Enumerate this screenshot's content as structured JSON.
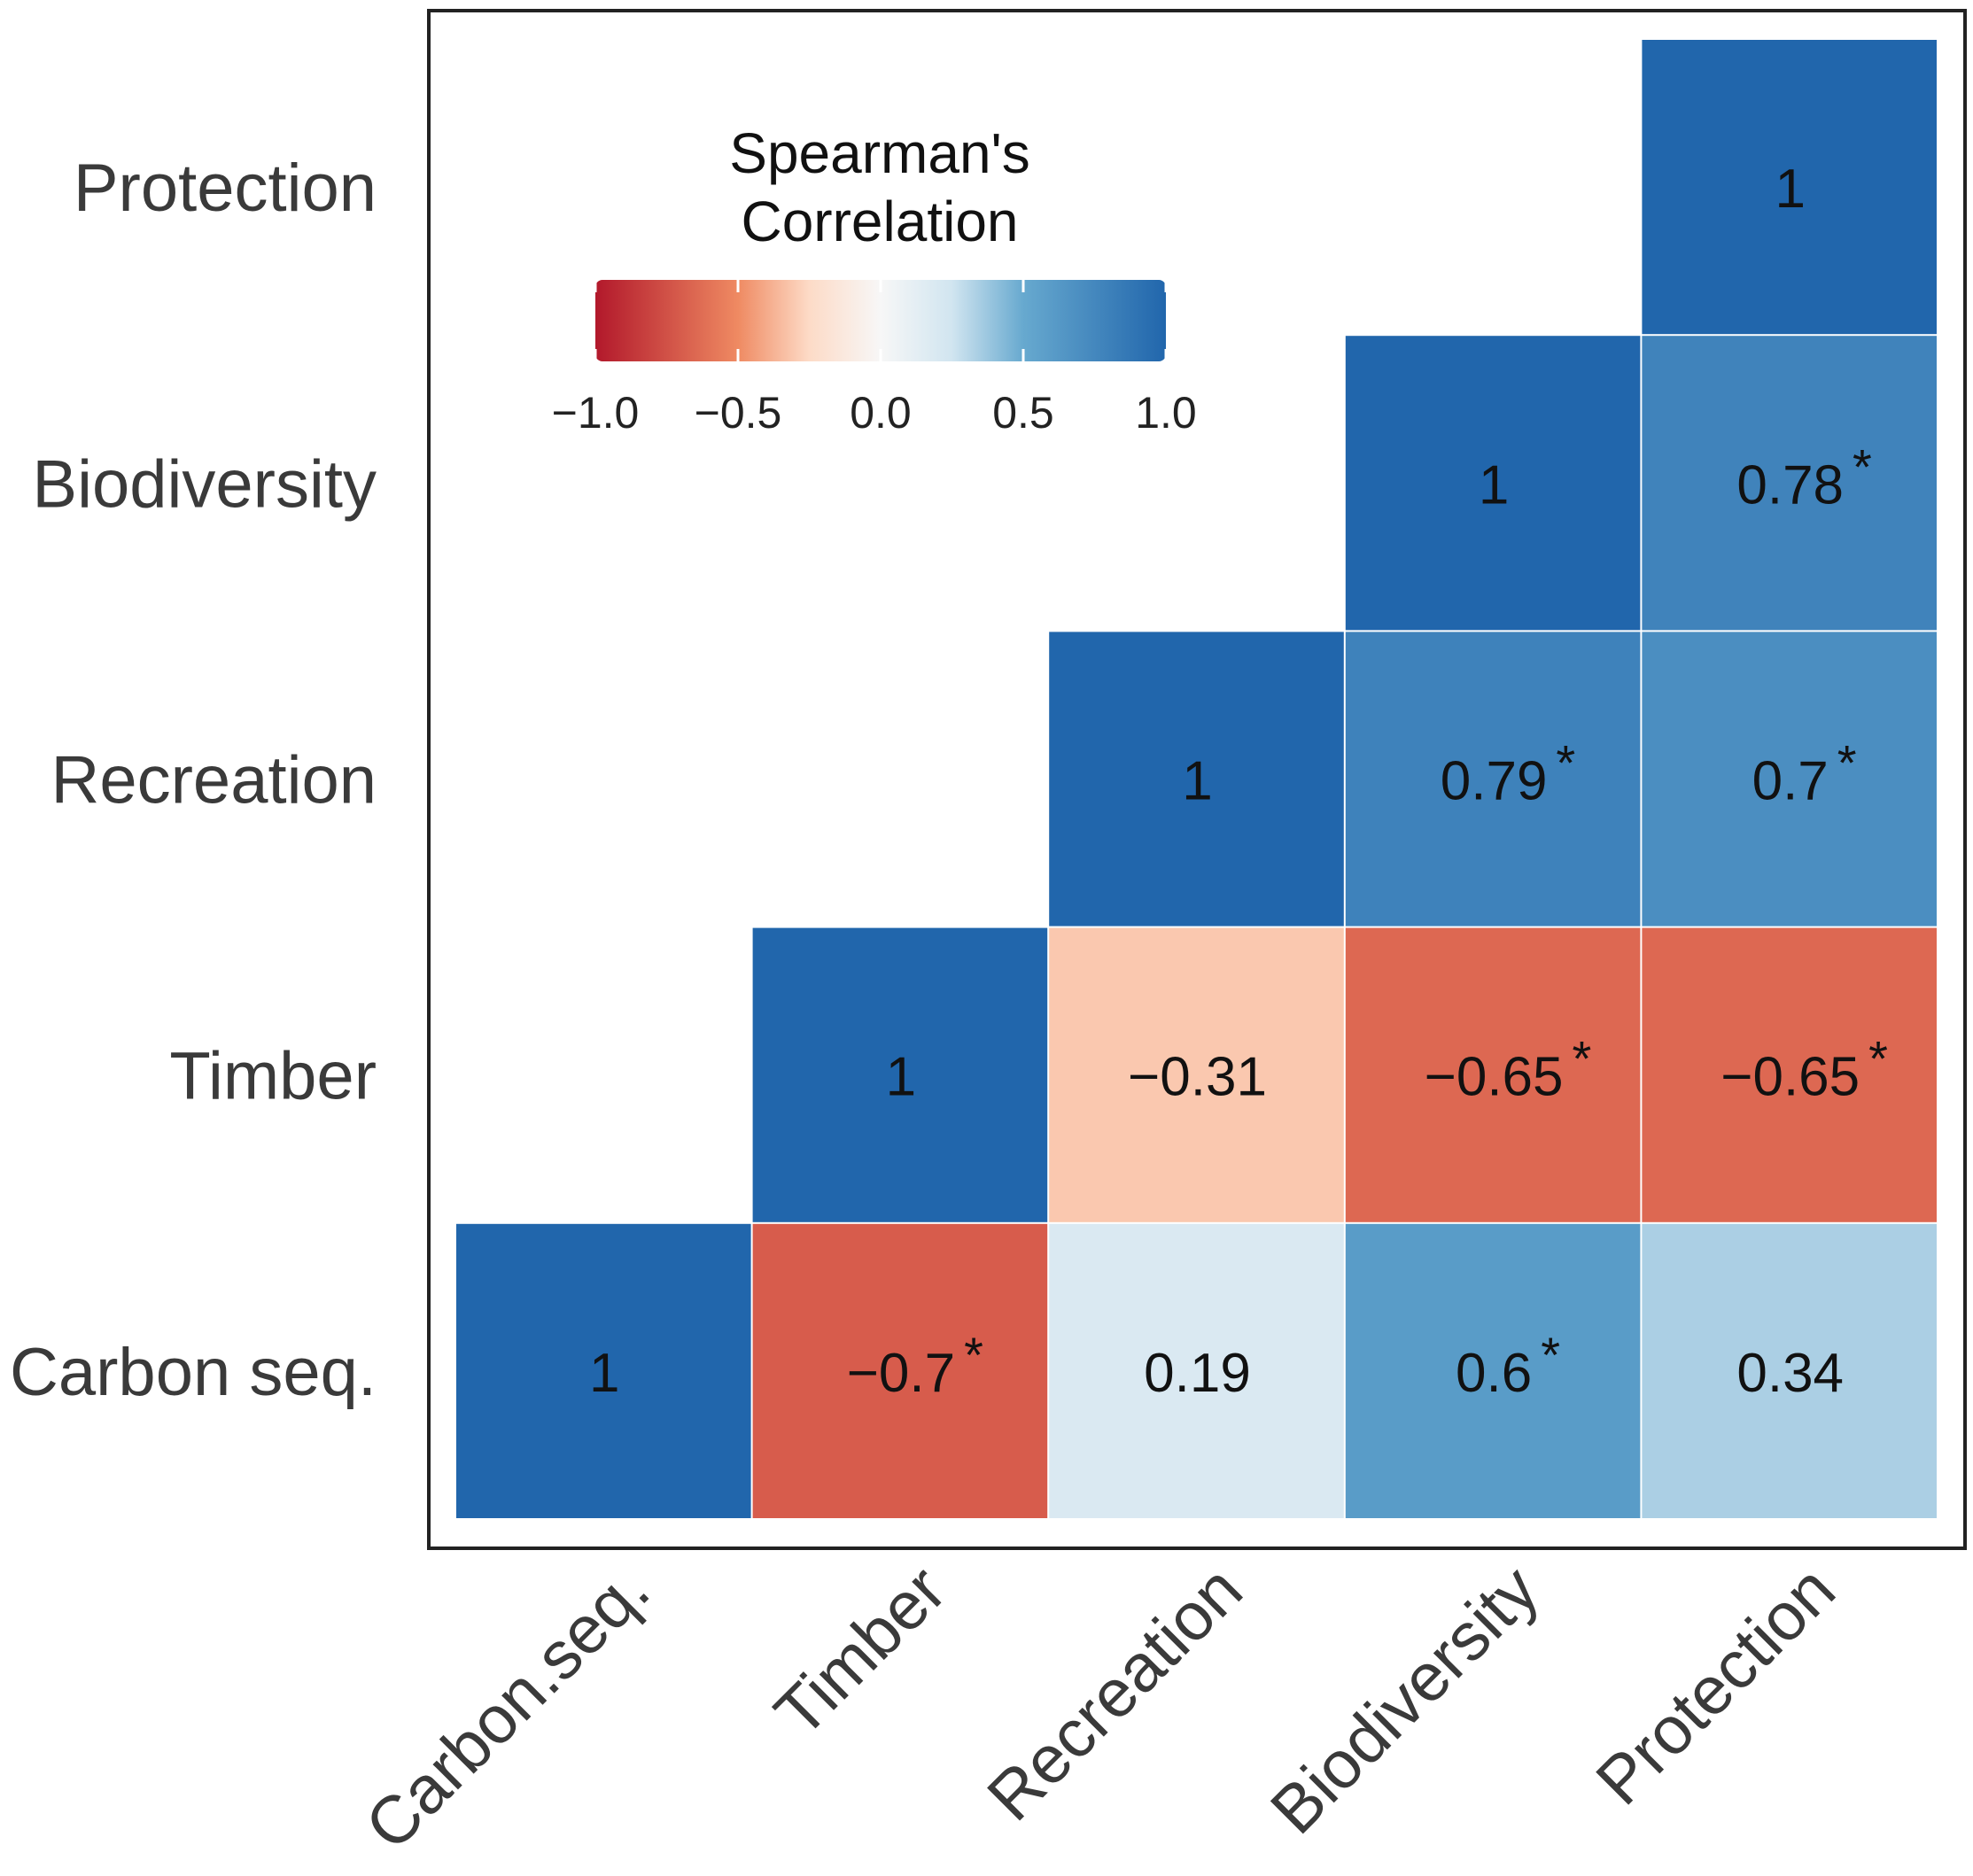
{
  "chart_data": {
    "type": "heatmap",
    "subtype": "upper-triangular correlation matrix",
    "variables": [
      "Carbon seq.",
      "Timber",
      "Recreation",
      "Biodiversity",
      "Protection"
    ],
    "x_tick_labels": [
      "Carbon.seq.",
      "Timber",
      "Recreation",
      "Biodiversity",
      "Protection"
    ],
    "y_tick_labels": [
      "Carbon seq.",
      "Timber",
      "Recreation",
      "Biodiversity",
      "Protection"
    ],
    "cells": [
      {
        "row": "Carbon seq.",
        "col": "Carbon.seq.",
        "value": 1,
        "label": "1",
        "significant": false
      },
      {
        "row": "Carbon seq.",
        "col": "Timber",
        "value": -0.7,
        "label": "−0.7",
        "significant": true
      },
      {
        "row": "Carbon seq.",
        "col": "Recreation",
        "value": 0.19,
        "label": "0.19",
        "significant": false
      },
      {
        "row": "Carbon seq.",
        "col": "Biodiversity",
        "value": 0.6,
        "label": "0.6",
        "significant": true
      },
      {
        "row": "Carbon seq.",
        "col": "Protection",
        "value": 0.34,
        "label": "0.34",
        "significant": false
      },
      {
        "row": "Timber",
        "col": "Timber",
        "value": 1,
        "label": "1",
        "significant": false
      },
      {
        "row": "Timber",
        "col": "Recreation",
        "value": -0.31,
        "label": "−0.31",
        "significant": false
      },
      {
        "row": "Timber",
        "col": "Biodiversity",
        "value": -0.65,
        "label": "−0.65",
        "significant": true
      },
      {
        "row": "Timber",
        "col": "Protection",
        "value": -0.65,
        "label": "−0.65",
        "significant": true
      },
      {
        "row": "Recreation",
        "col": "Recreation",
        "value": 1,
        "label": "1",
        "significant": false
      },
      {
        "row": "Recreation",
        "col": "Biodiversity",
        "value": 0.79,
        "label": "0.79",
        "significant": true
      },
      {
        "row": "Recreation",
        "col": "Protection",
        "value": 0.7,
        "label": "0.7",
        "significant": true
      },
      {
        "row": "Biodiversity",
        "col": "Biodiversity",
        "value": 1,
        "label": "1",
        "significant": false
      },
      {
        "row": "Biodiversity",
        "col": "Protection",
        "value": 0.78,
        "label": "0.78",
        "significant": true
      },
      {
        "row": "Protection",
        "col": "Protection",
        "value": 1,
        "label": "1",
        "significant": false
      }
    ],
    "significance_marker": "*",
    "legend": {
      "title_line1": "Spearman's",
      "title_line2": "Correlation",
      "ticks": [
        "−1.0",
        "−0.5",
        "0.0",
        "0.5",
        "1.0"
      ],
      "range": [
        -1,
        1
      ],
      "placement": "top-left inside panel"
    },
    "colorscale": {
      "stops": [
        {
          "value": -1.0,
          "color": "#b2182b"
        },
        {
          "value": -0.5,
          "color": "#ef8a62"
        },
        {
          "value": -0.25,
          "color": "#fddbc7"
        },
        {
          "value": 0.0,
          "color": "#f7f7f7"
        },
        {
          "value": 0.25,
          "color": "#d1e5f0"
        },
        {
          "value": 0.5,
          "color": "#67a9cf"
        },
        {
          "value": 1.0,
          "color": "#2166ac"
        }
      ]
    },
    "title": "",
    "xlabel": "",
    "ylabel": ""
  }
}
